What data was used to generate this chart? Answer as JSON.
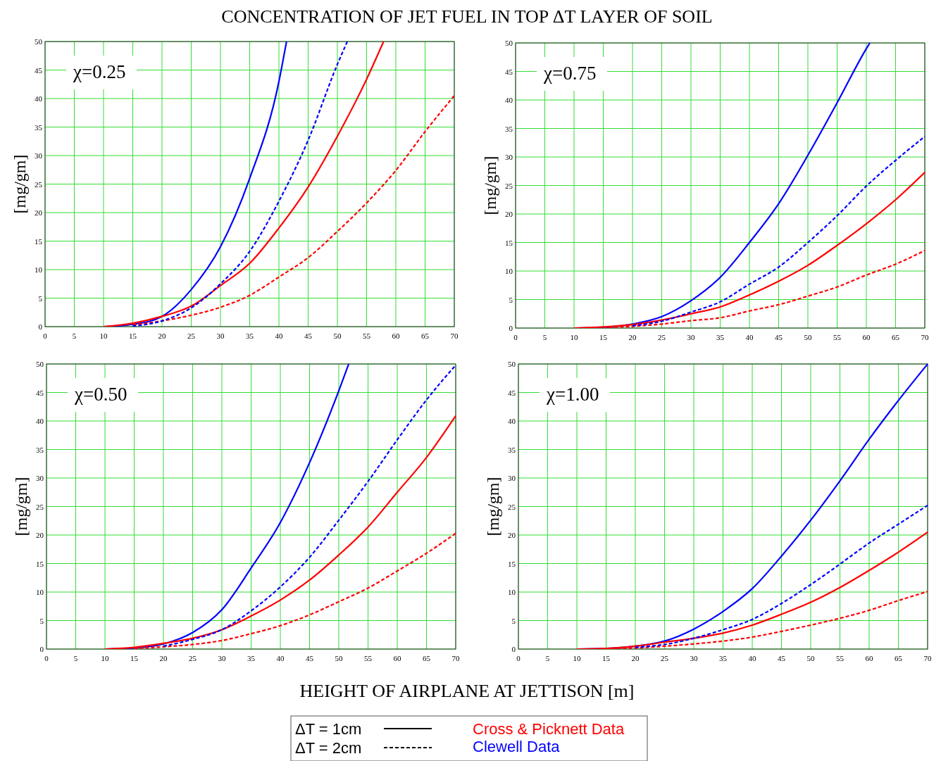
{
  "chart_data": [
    {
      "type": "line",
      "title": "CONCENTRATION OF JET FUEL IN TOP ΔT LAYER OF SOIL",
      "ylabel": "[mg/gm]",
      "annotations": [
        "χ=0.25"
      ],
      "xlim": [
        0,
        70
      ],
      "ylim": [
        0,
        50
      ],
      "xticks": [
        0,
        5,
        10,
        15,
        20,
        25,
        30,
        35,
        40,
        45,
        50,
        55,
        60,
        65,
        70
      ],
      "yticks": [
        0,
        5,
        10,
        15,
        20,
        25,
        30,
        35,
        40,
        45,
        50
      ],
      "grid": true,
      "series": [
        {
          "color": "#0000ff",
          "line_style": "solid",
          "x": [
            10,
            15,
            20,
            25,
            30,
            35,
            40,
            41.3
          ],
          "values": [
            0,
            0.4,
            1.8,
            6.5,
            14,
            26,
            43,
            50
          ]
        },
        {
          "color": "#0000ff",
          "line_style": "dashed",
          "x": [
            15,
            20,
            25,
            30,
            35,
            40,
            45,
            50,
            51.7
          ],
          "values": [
            0.1,
            1,
            3.3,
            7.5,
            13.2,
            22,
            32.7,
            46,
            50
          ]
        },
        {
          "color": "#ff0000",
          "line_style": "solid",
          "x": [
            10,
            15,
            20,
            25,
            30,
            35,
            40,
            45,
            50,
            55,
            57.9
          ],
          "values": [
            0,
            0.6,
            1.8,
            3.6,
            7.2,
            11.1,
            17.3,
            24.5,
            33.4,
            43.4,
            50
          ]
        },
        {
          "color": "#ff0000",
          "line_style": "dashed",
          "x": [
            15,
            20,
            25,
            30,
            35,
            40,
            45,
            50,
            55,
            60,
            65,
            70
          ],
          "values": [
            0.3,
            1,
            2,
            3.4,
            5.5,
            8.7,
            12.1,
            16.7,
            21.7,
            27.4,
            34.2,
            40.5
          ]
        }
      ]
    },
    {
      "type": "line",
      "ylabel": "[mg/gm]",
      "annotations": [
        "χ=0.75"
      ],
      "xlim": [
        0,
        70
      ],
      "ylim": [
        0,
        50
      ],
      "xticks": [
        0,
        5,
        10,
        15,
        20,
        25,
        30,
        35,
        40,
        45,
        50,
        55,
        60,
        65,
        70
      ],
      "yticks": [
        0,
        5,
        10,
        15,
        20,
        25,
        30,
        35,
        40,
        45,
        50
      ],
      "grid": true,
      "series": [
        {
          "color": "#0000ff",
          "line_style": "solid",
          "x": [
            10,
            15,
            20,
            25,
            30,
            35,
            40,
            45,
            50,
            55,
            60,
            60.6
          ],
          "values": [
            0,
            0.1,
            0.7,
            2,
            4.8,
            8.9,
            15,
            21.8,
            30.3,
            39.5,
            49,
            50
          ]
        },
        {
          "color": "#0000ff",
          "line_style": "dashed",
          "x": [
            20,
            25,
            30,
            35,
            40,
            45,
            50,
            55,
            60,
            65,
            70
          ],
          "values": [
            0.4,
            1.2,
            2.8,
            4.6,
            7.7,
            10.7,
            15,
            19.7,
            24.9,
            29.4,
            33.6
          ]
        },
        {
          "color": "#ff0000",
          "line_style": "solid",
          "x": [
            10,
            15,
            20,
            25,
            30,
            35,
            40,
            45,
            50,
            55,
            60,
            65,
            70
          ],
          "values": [
            0,
            0.2,
            0.6,
            1.4,
            2.5,
            3.7,
            5.8,
            8.2,
            11,
            14.5,
            18.3,
            22.5,
            27.3
          ]
        },
        {
          "color": "#ff0000",
          "line_style": "dashed",
          "x": [
            15,
            20,
            25,
            30,
            35,
            40,
            45,
            50,
            55,
            60,
            65,
            70
          ],
          "values": [
            0.1,
            0.3,
            0.7,
            1.3,
            1.8,
            3,
            4.1,
            5.6,
            7.2,
            9.3,
            11.2,
            13.6
          ]
        }
      ]
    },
    {
      "type": "line",
      "ylabel": "[mg/gm]",
      "xlabel": "HEIGHT OF AIRPLANE AT JETTISON [m]",
      "annotations": [
        "χ=0.50"
      ],
      "xlim": [
        0,
        70
      ],
      "ylim": [
        0,
        50
      ],
      "xticks": [
        0,
        5,
        10,
        15,
        20,
        25,
        30,
        35,
        40,
        45,
        50,
        55,
        60,
        65,
        70
      ],
      "yticks": [
        0,
        5,
        10,
        15,
        20,
        25,
        30,
        35,
        40,
        45,
        50
      ],
      "grid": true,
      "series": [
        {
          "color": "#0000ff",
          "line_style": "solid",
          "x": [
            10,
            15,
            20,
            25,
            30,
            35,
            40,
            45,
            50,
            51.7
          ],
          "values": [
            0,
            0.2,
            0.9,
            2.9,
            6.9,
            14.2,
            22.2,
            32.7,
            45.3,
            50
          ]
        },
        {
          "color": "#0000ff",
          "line_style": "dashed",
          "x": [
            20,
            25,
            30,
            35,
            40,
            45,
            50,
            55,
            60,
            65,
            70
          ],
          "values": [
            0.5,
            1.7,
            3.4,
            6.7,
            10.9,
            16.1,
            22.6,
            29.4,
            36.7,
            43.7,
            49.8
          ]
        },
        {
          "color": "#ff0000",
          "line_style": "solid",
          "x": [
            10,
            15,
            20,
            25,
            30,
            35,
            40,
            45,
            50,
            55,
            60,
            65,
            70
          ],
          "values": [
            0,
            0.3,
            1,
            1.9,
            3.4,
            5.8,
            8.6,
            12.1,
            16.5,
            21.4,
            27.5,
            33.6,
            40.9
          ]
        },
        {
          "color": "#ff0000",
          "line_style": "dashed",
          "x": [
            15,
            20,
            25,
            30,
            35,
            40,
            45,
            50,
            55,
            60,
            65,
            70
          ],
          "values": [
            0.1,
            0.4,
            0.8,
            1.5,
            2.7,
            4.1,
            6,
            8.3,
            10.7,
            13.7,
            16.8,
            20.3
          ]
        }
      ]
    },
    {
      "type": "line",
      "ylabel": "[mg/gm]",
      "annotations": [
        "χ=1.00"
      ],
      "xlim": [
        0,
        70
      ],
      "ylim": [
        0,
        50
      ],
      "xticks": [
        0,
        5,
        10,
        15,
        20,
        25,
        30,
        35,
        40,
        45,
        50,
        55,
        60,
        65,
        70
      ],
      "yticks": [
        0,
        5,
        10,
        15,
        20,
        25,
        30,
        35,
        40,
        45,
        50
      ],
      "grid": true,
      "series": [
        {
          "color": "#0000ff",
          "line_style": "solid",
          "x": [
            10,
            15,
            20,
            25,
            30,
            35,
            40,
            45,
            50,
            55,
            60,
            65,
            70
          ],
          "values": [
            0,
            0.1,
            0.5,
            1.4,
            3.5,
            6.6,
            10.6,
            16.3,
            22.6,
            29.5,
            36.8,
            43.6,
            50
          ]
        },
        {
          "color": "#0000ff",
          "line_style": "dashed",
          "x": [
            20,
            25,
            30,
            35,
            40,
            45,
            50,
            55,
            60,
            65,
            70
          ],
          "values": [
            0.3,
            0.8,
            1.9,
            3.4,
            5.2,
            8,
            11.3,
            14.9,
            18.6,
            21.9,
            25.2
          ]
        },
        {
          "color": "#ff0000",
          "line_style": "solid",
          "x": [
            10,
            15,
            20,
            25,
            30,
            35,
            40,
            45,
            50,
            55,
            60,
            65,
            70
          ],
          "values": [
            0,
            0.1,
            0.5,
            1.2,
            1.9,
            2.8,
            4.2,
            6.1,
            8.2,
            10.8,
            13.8,
            17,
            20.5
          ]
        },
        {
          "color": "#ff0000",
          "line_style": "dashed",
          "x": [
            15,
            20,
            25,
            30,
            35,
            40,
            45,
            50,
            55,
            60,
            65,
            70
          ],
          "values": [
            0.1,
            0.2,
            0.5,
            0.9,
            1.4,
            2.1,
            3.1,
            4.2,
            5.4,
            6.8,
            8.5,
            10.1
          ]
        }
      ]
    },
    {
      "type": "other",
      "series": [
        {
          "name": "ΔT = 1cm",
          "color": "#000000",
          "line_style": "solid"
        },
        {
          "name": "ΔT = 2cm",
          "color": "#000000",
          "line_style": "dashed"
        },
        {
          "name": "Cross & Picknett Data",
          "color": "#ff0000"
        },
        {
          "name": "Clewell Data",
          "color": "#0000ff"
        }
      ]
    }
  ]
}
